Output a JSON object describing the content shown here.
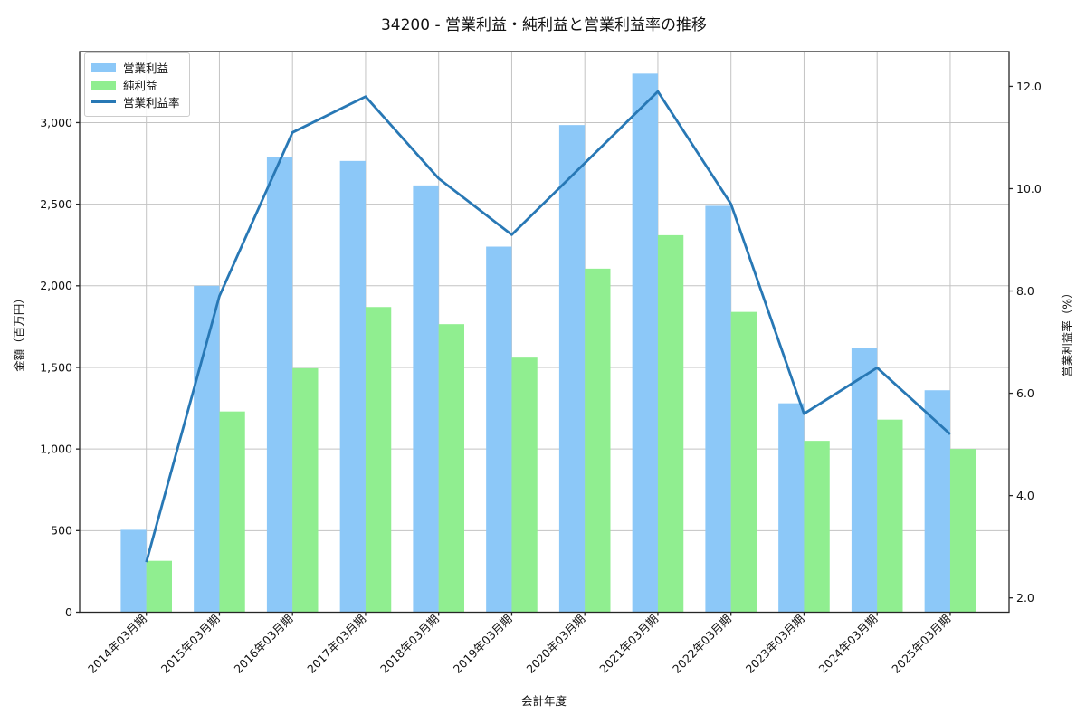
{
  "chart_data": {
    "type": "bar+line",
    "title": "34200 - 営業利益・純利益と営業利益率の推移",
    "xlabel": "会計年度",
    "ylabel_left": "金額（百万円）",
    "ylabel_right": "営業利益率（%）",
    "categories": [
      "2014年03月期",
      "2015年03月期",
      "2016年03月期",
      "2017年03月期",
      "2018年03月期",
      "2019年03月期",
      "2020年03月期",
      "2021年03月期",
      "2022年03月期",
      "2023年03月期",
      "2024年03月期",
      "2025年03月期"
    ],
    "series": [
      {
        "id": "operating-profit",
        "name": "営業利益",
        "kind": "bar",
        "axis": "left",
        "color": "#8cc8f8",
        "values": [
          505,
          2000,
          2790,
          2765,
          2615,
          2240,
          2985,
          3300,
          2490,
          1280,
          1620,
          1360
        ]
      },
      {
        "id": "net-profit",
        "name": "純利益",
        "kind": "bar",
        "axis": "left",
        "color": "#90ee90",
        "values": [
          315,
          1230,
          1495,
          1870,
          1765,
          1560,
          2105,
          2310,
          1840,
          1050,
          1180,
          1000
        ]
      },
      {
        "id": "operating-margin",
        "name": "営業利益率",
        "kind": "line",
        "axis": "right",
        "color": "#2878b5",
        "values": [
          2.7,
          7.9,
          11.1,
          11.8,
          10.2,
          9.1,
          10.5,
          11.9,
          9.7,
          5.6,
          6.5,
          5.2
        ]
      }
    ],
    "ytick_labels_left": [
      "0",
      "500",
      "1,000",
      "1,500",
      "2,000",
      "2,500",
      "3,000"
    ],
    "ytick_labels_right": [
      "2.0",
      "4.0",
      "6.0",
      "8.0",
      "10.0",
      "12.0"
    ],
    "ylim_left": [
      0,
      3435
    ],
    "ylim_right": [
      1.72,
      12.68
    ],
    "grid": true,
    "legend_position": "upper left"
  }
}
